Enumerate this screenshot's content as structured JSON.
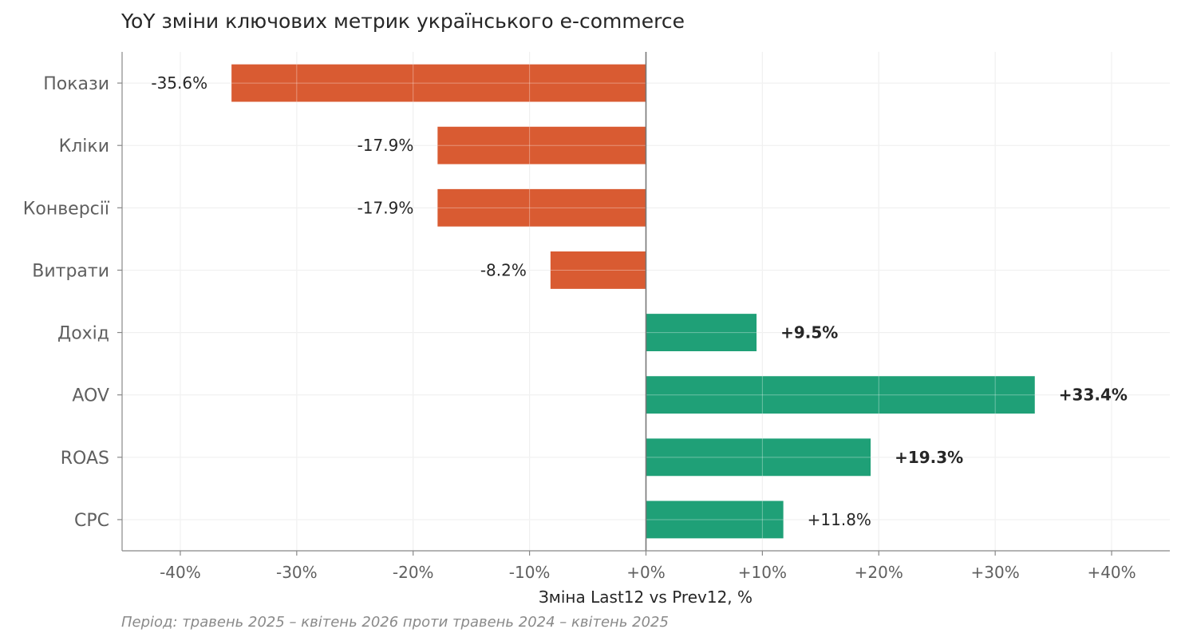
{
  "chart_data": {
    "type": "bar",
    "orientation": "horizontal",
    "title": "YoY зміни ключових метрик українського e-commerce",
    "xlabel": "Зміна Last12 vs Prev12, %",
    "note": "Період: травень 2025 – квітень 2026 проти травень 2024 – квітень 2025",
    "categories": [
      "Покази",
      "Кліки",
      "Конверсії",
      "Витрати",
      "Дохід",
      "AOV",
      "ROAS",
      "CPC"
    ],
    "values": [
      -35.6,
      -17.9,
      -17.9,
      -8.2,
      9.5,
      33.4,
      19.3,
      11.8
    ],
    "labels": [
      "-35.6%",
      "-17.9%",
      "-17.9%",
      "-8.2%",
      "+9.5%",
      "+33.4%",
      "+19.3%",
      "+11.8%"
    ],
    "bold_labels": [
      false,
      false,
      false,
      false,
      true,
      true,
      true,
      false
    ],
    "xlim": [
      -45,
      45
    ],
    "xticks": [
      -40,
      -30,
      -20,
      -10,
      0,
      10,
      20,
      30,
      40
    ],
    "xtick_labels": [
      "-40%",
      "-30%",
      "-20%",
      "-10%",
      "+0%",
      "+10%",
      "+20%",
      "+30%",
      "+40%"
    ],
    "grid": true,
    "colors": {
      "negative": "#d95b32",
      "positive": "#1fa077",
      "zero_line": "#777777"
    }
  }
}
